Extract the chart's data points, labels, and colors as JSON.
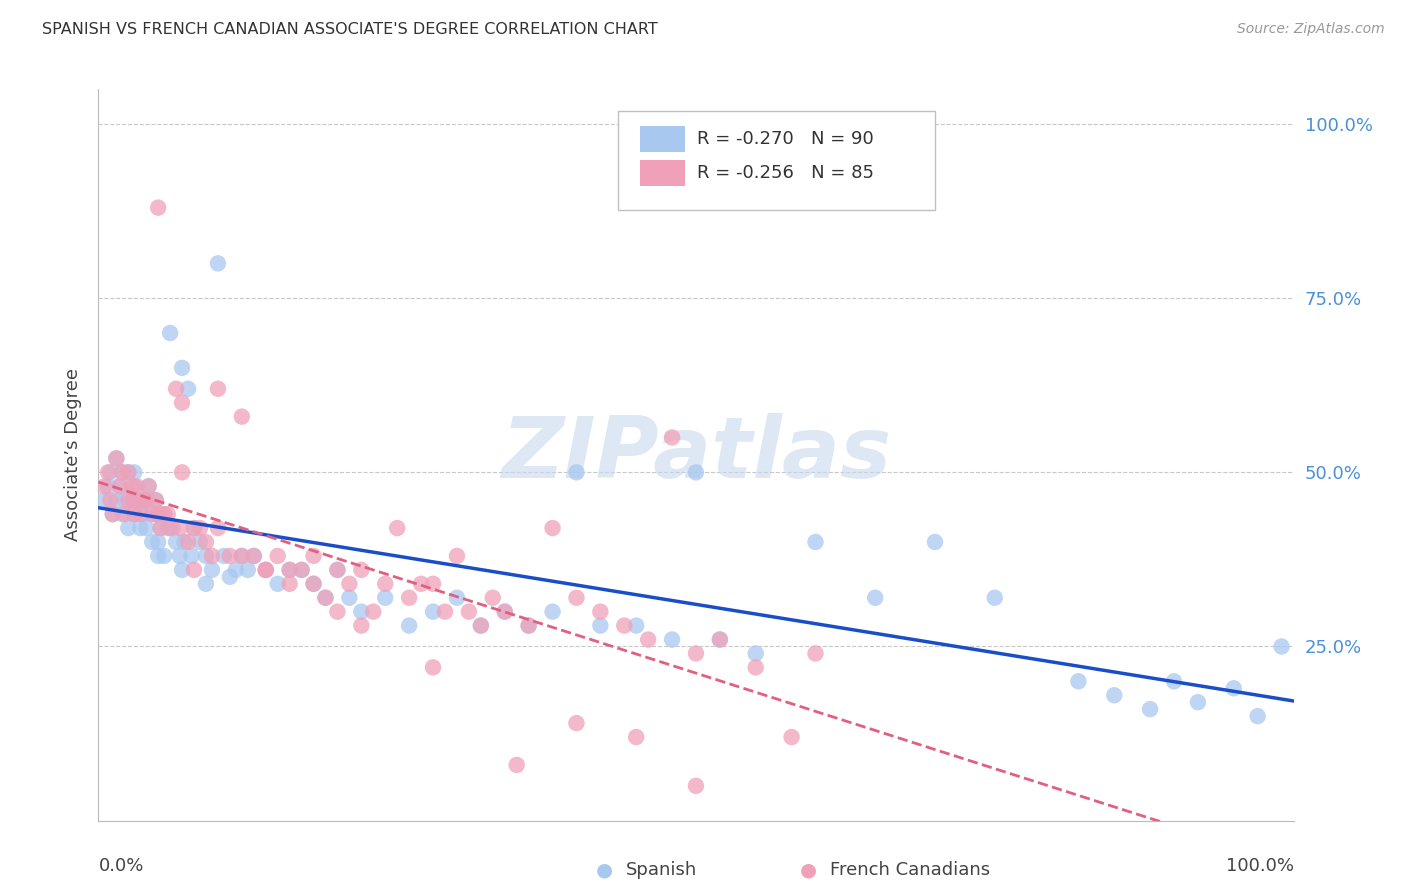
{
  "title": "SPANISH VS FRENCH CANADIAN ASSOCIATE'S DEGREE CORRELATION CHART",
  "source": "Source: ZipAtlas.com",
  "ylabel": "Associate’s Degree",
  "watermark": "ZIPatlas",
  "legend_r1": "R = -0.270",
  "legend_n1": "N = 90",
  "legend_r2": "R = -0.256",
  "legend_n2": "N = 85",
  "color_spanish": "#A8C8F0",
  "color_french": "#F0A0B8",
  "color_line_spanish": "#1A4EC8",
  "color_line_french": "#E06080",
  "color_ytick": "#4A90D9",
  "background_color": "#FFFFFF",
  "xlim": [
    0.0,
    1.0
  ],
  "ylim": [
    0.0,
    1.05
  ],
  "ytick_values": [
    0.25,
    0.5,
    0.75,
    1.0
  ],
  "ytick_labels": [
    "25.0%",
    "50.0%",
    "75.0%",
    "100.0%"
  ],
  "spanish_x": [
    0.005,
    0.008,
    0.01,
    0.012,
    0.015,
    0.015,
    0.018,
    0.02,
    0.02,
    0.022,
    0.025,
    0.025,
    0.028,
    0.03,
    0.03,
    0.03,
    0.032,
    0.035,
    0.035,
    0.038,
    0.04,
    0.04,
    0.042,
    0.045,
    0.045,
    0.048,
    0.05,
    0.05,
    0.052,
    0.055,
    0.055,
    0.058,
    0.06,
    0.062,
    0.065,
    0.068,
    0.07,
    0.072,
    0.075,
    0.078,
    0.08,
    0.085,
    0.09,
    0.095,
    0.1,
    0.105,
    0.11,
    0.115,
    0.12,
    0.125,
    0.13,
    0.14,
    0.15,
    0.16,
    0.17,
    0.18,
    0.19,
    0.2,
    0.21,
    0.22,
    0.24,
    0.26,
    0.28,
    0.3,
    0.32,
    0.34,
    0.36,
    0.38,
    0.4,
    0.42,
    0.45,
    0.48,
    0.5,
    0.52,
    0.55,
    0.6,
    0.65,
    0.7,
    0.75,
    0.82,
    0.85,
    0.88,
    0.9,
    0.92,
    0.95,
    0.97,
    0.99,
    0.05,
    0.07,
    0.09
  ],
  "spanish_y": [
    0.46,
    0.48,
    0.5,
    0.44,
    0.52,
    0.46,
    0.48,
    0.44,
    0.5,
    0.46,
    0.5,
    0.42,
    0.46,
    0.5,
    0.44,
    0.48,
    0.46,
    0.42,
    0.46,
    0.44,
    0.46,
    0.42,
    0.48,
    0.44,
    0.4,
    0.46,
    0.44,
    0.4,
    0.42,
    0.44,
    0.38,
    0.42,
    0.7,
    0.42,
    0.4,
    0.38,
    0.65,
    0.4,
    0.62,
    0.38,
    0.42,
    0.4,
    0.38,
    0.36,
    0.8,
    0.38,
    0.35,
    0.36,
    0.38,
    0.36,
    0.38,
    0.36,
    0.34,
    0.36,
    0.36,
    0.34,
    0.32,
    0.36,
    0.32,
    0.3,
    0.32,
    0.28,
    0.3,
    0.32,
    0.28,
    0.3,
    0.28,
    0.3,
    0.5,
    0.28,
    0.28,
    0.26,
    0.5,
    0.26,
    0.24,
    0.4,
    0.32,
    0.4,
    0.32,
    0.2,
    0.18,
    0.16,
    0.2,
    0.17,
    0.19,
    0.15,
    0.25,
    0.38,
    0.36,
    0.34
  ],
  "french_x": [
    0.005,
    0.008,
    0.01,
    0.012,
    0.015,
    0.018,
    0.02,
    0.022,
    0.025,
    0.025,
    0.028,
    0.03,
    0.03,
    0.032,
    0.035,
    0.038,
    0.04,
    0.042,
    0.045,
    0.048,
    0.05,
    0.052,
    0.055,
    0.058,
    0.06,
    0.065,
    0.068,
    0.07,
    0.075,
    0.08,
    0.085,
    0.09,
    0.095,
    0.1,
    0.11,
    0.12,
    0.13,
    0.14,
    0.15,
    0.16,
    0.17,
    0.18,
    0.19,
    0.2,
    0.21,
    0.22,
    0.23,
    0.24,
    0.25,
    0.26,
    0.27,
    0.28,
    0.29,
    0.3,
    0.31,
    0.32,
    0.33,
    0.34,
    0.36,
    0.38,
    0.4,
    0.42,
    0.44,
    0.46,
    0.48,
    0.5,
    0.52,
    0.55,
    0.58,
    0.6,
    0.08,
    0.1,
    0.12,
    0.14,
    0.16,
    0.18,
    0.2,
    0.22,
    0.28,
    0.35,
    0.4,
    0.45,
    0.5,
    0.05,
    0.07
  ],
  "french_y": [
    0.48,
    0.5,
    0.46,
    0.44,
    0.52,
    0.48,
    0.5,
    0.44,
    0.5,
    0.46,
    0.48,
    0.46,
    0.44,
    0.48,
    0.44,
    0.46,
    0.46,
    0.48,
    0.44,
    0.46,
    0.44,
    0.42,
    0.44,
    0.44,
    0.42,
    0.62,
    0.42,
    0.6,
    0.4,
    0.42,
    0.42,
    0.4,
    0.38,
    0.42,
    0.38,
    0.38,
    0.38,
    0.36,
    0.38,
    0.36,
    0.36,
    0.34,
    0.32,
    0.36,
    0.34,
    0.36,
    0.3,
    0.34,
    0.42,
    0.32,
    0.34,
    0.34,
    0.3,
    0.38,
    0.3,
    0.28,
    0.32,
    0.3,
    0.28,
    0.42,
    0.32,
    0.3,
    0.28,
    0.26,
    0.55,
    0.24,
    0.26,
    0.22,
    0.12,
    0.24,
    0.36,
    0.62,
    0.58,
    0.36,
    0.34,
    0.38,
    0.3,
    0.28,
    0.22,
    0.08,
    0.14,
    0.12,
    0.05,
    0.88,
    0.5
  ]
}
